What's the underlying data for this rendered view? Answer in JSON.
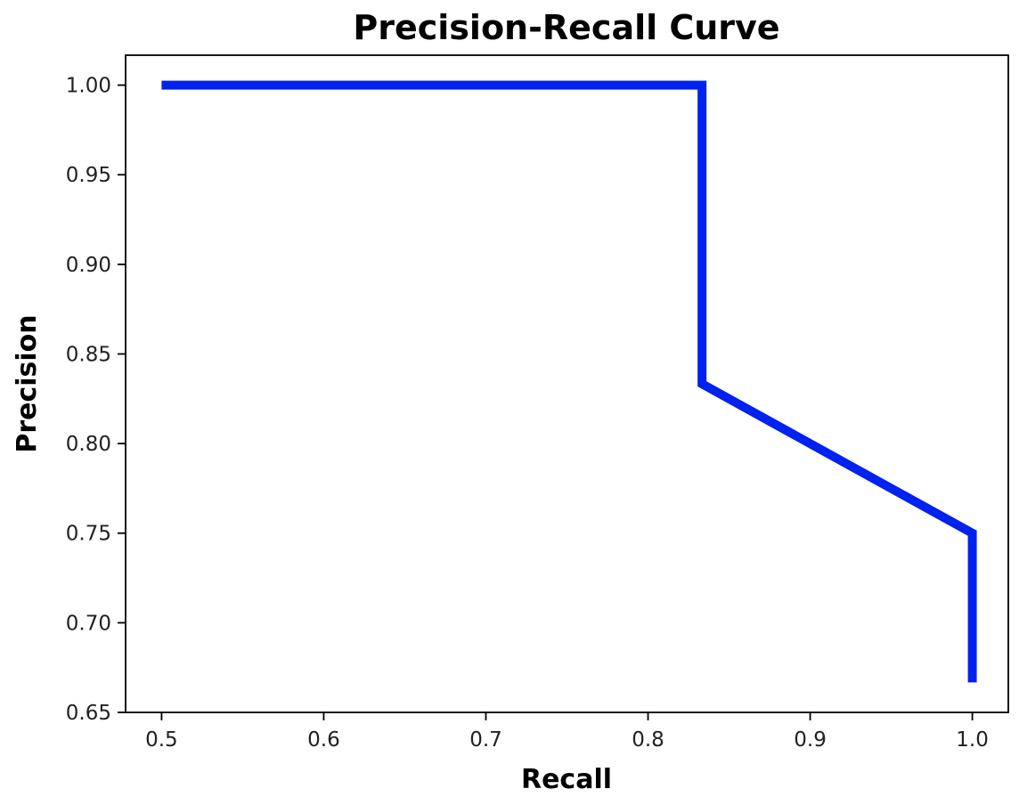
{
  "chart_data": {
    "type": "line",
    "title": "Precision-Recall Curve",
    "xlabel": "Recall",
    "ylabel": "Precision",
    "xlim": [
      0.4778,
      1.0222
    ],
    "ylim": [
      0.65,
      1.0167
    ],
    "grid": false,
    "x_ticks": [
      0.5,
      0.6,
      0.7,
      0.8,
      0.9,
      1.0
    ],
    "x_tick_labels": [
      "0.5",
      "0.6",
      "0.7",
      "0.8",
      "0.9",
      "1.0"
    ],
    "y_ticks": [
      0.65,
      0.7,
      0.75,
      0.8,
      0.85,
      0.9,
      0.95,
      1.0
    ],
    "y_tick_labels": [
      "0.65",
      "0.70",
      "0.75",
      "0.80",
      "0.85",
      "0.90",
      "0.95",
      "1.00"
    ],
    "series": [
      {
        "color": "#0022ee",
        "x": [
          0.5,
          0.8333,
          0.8333,
          1.0,
          1.0
        ],
        "y": [
          1.0,
          1.0,
          0.8333,
          0.75,
          0.6667
        ]
      }
    ]
  }
}
